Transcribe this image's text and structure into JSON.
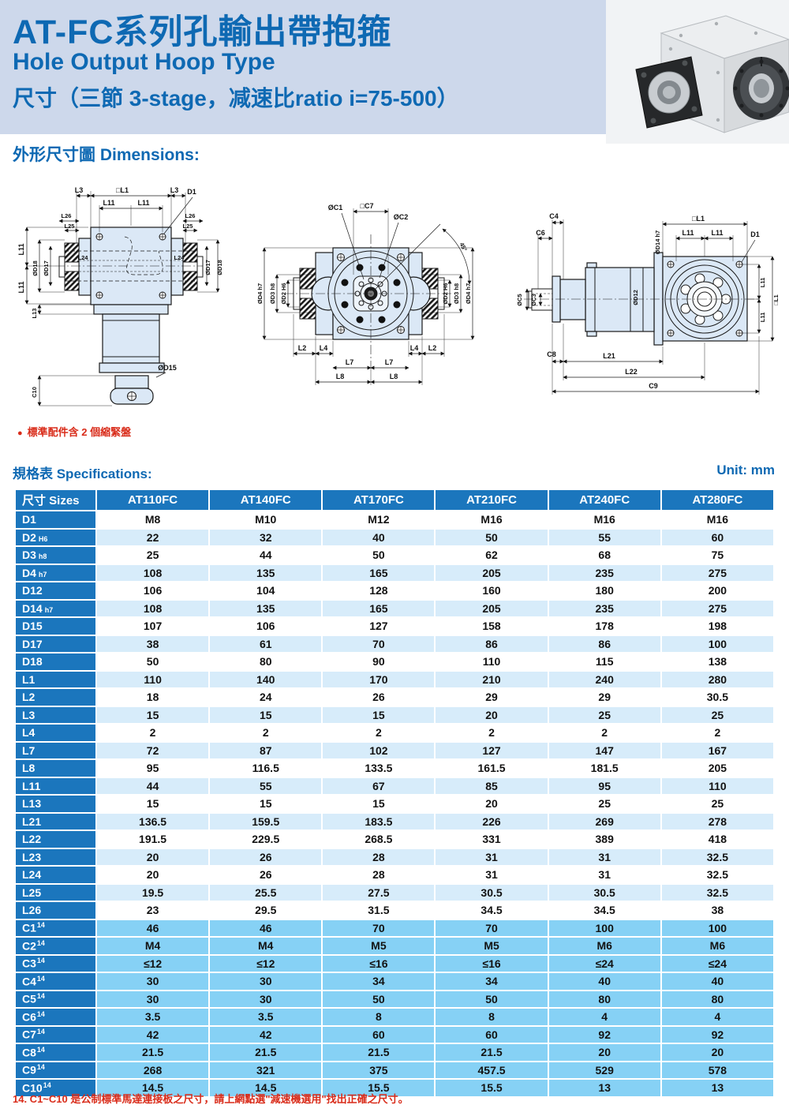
{
  "header": {
    "title_zh": "AT-FC系列孔輸出帶抱箍",
    "title_en": "Hole Output Hoop Type",
    "subtitle": "尺寸（三節 3-stage，减速比ratio i=75-500）"
  },
  "sections": {
    "dimensions_heading": "外形尺寸圖 Dimensions:",
    "spec_heading": "規格表 Specifications:",
    "unit": "Unit: mm"
  },
  "notes": {
    "accessory_bullet": "●",
    "accessory": "標準配件含 2 個縮緊盤",
    "footnote": "14. C1~C10 是公制標準馬達連接板之尺寸，請上網點選\"減速機選用\"找出正確之尺寸。"
  },
  "colors": {
    "header_band": "#cdd8eb",
    "accent_blue": "#0e69b3",
    "table_header": "#1b76bd",
    "row_light": "#d7ecfa",
    "row_c": "#86d1f5",
    "note_red": "#d92c1a",
    "drawing_fill": "#dbe8f6"
  },
  "dims": {
    "front": [
      "L3",
      "□L1",
      "L3",
      "D1",
      "L11",
      "L11",
      "L26",
      "L25",
      "L26",
      "L25",
      "L24",
      "L24",
      "L11",
      "L11",
      "ØD18",
      "ØD17",
      "L13",
      "C10",
      "ØD17",
      "ØD18",
      "ØD15"
    ],
    "side": [
      "ØC1",
      "□C7",
      "ØC2",
      "45°",
      "ØD4 h7",
      "ØD3 h8",
      "ØD2 H6",
      "ØD2 H6",
      "ØD3 h8",
      "ØD4 h7",
      "L2",
      "L4",
      "L4",
      "L2",
      "L7",
      "L7",
      "L8",
      "L8"
    ],
    "rear": [
      "C4",
      "C6",
      "ØC5",
      "ØC3",
      "ØD14 h7",
      "□L1",
      "L11",
      "L11",
      "D1",
      "ØD12",
      "L11",
      "L11",
      "□L1",
      "C8",
      "L21",
      "L22",
      "C9"
    ]
  },
  "table": {
    "size_header": "尺寸 Sizes",
    "columns": [
      "AT110FC",
      "AT140FC",
      "AT170FC",
      "AT210FC",
      "AT240FC",
      "AT280FC"
    ],
    "rows": [
      {
        "label": "D1",
        "values": [
          "M8",
          "M10",
          "M12",
          "M16",
          "M16",
          "M16"
        ]
      },
      {
        "label": "D2",
        "sub": "H6",
        "values": [
          "22",
          "32",
          "40",
          "50",
          "55",
          "60"
        ]
      },
      {
        "label": "D3",
        "sub": "h8",
        "values": [
          "25",
          "44",
          "50",
          "62",
          "68",
          "75"
        ]
      },
      {
        "label": "D4",
        "sub": "h7",
        "values": [
          "108",
          "135",
          "165",
          "205",
          "235",
          "275"
        ]
      },
      {
        "label": "D12",
        "values": [
          "106",
          "104",
          "128",
          "160",
          "180",
          "200"
        ]
      },
      {
        "label": "D14",
        "sub": "h7",
        "values": [
          "108",
          "135",
          "165",
          "205",
          "235",
          "275"
        ]
      },
      {
        "label": "D15",
        "values": [
          "107",
          "106",
          "127",
          "158",
          "178",
          "198"
        ]
      },
      {
        "label": "D17",
        "values": [
          "38",
          "61",
          "70",
          "86",
          "86",
          "100"
        ]
      },
      {
        "label": "D18",
        "values": [
          "50",
          "80",
          "90",
          "110",
          "115",
          "138"
        ]
      },
      {
        "label": "L1",
        "values": [
          "110",
          "140",
          "170",
          "210",
          "240",
          "280"
        ]
      },
      {
        "label": "L2",
        "values": [
          "18",
          "24",
          "26",
          "29",
          "29",
          "30.5"
        ]
      },
      {
        "label": "L3",
        "values": [
          "15",
          "15",
          "15",
          "20",
          "25",
          "25"
        ]
      },
      {
        "label": "L4",
        "values": [
          "2",
          "2",
          "2",
          "2",
          "2",
          "2"
        ]
      },
      {
        "label": "L7",
        "values": [
          "72",
          "87",
          "102",
          "127",
          "147",
          "167"
        ]
      },
      {
        "label": "L8",
        "values": [
          "95",
          "116.5",
          "133.5",
          "161.5",
          "181.5",
          "205"
        ]
      },
      {
        "label": "L11",
        "values": [
          "44",
          "55",
          "67",
          "85",
          "95",
          "110"
        ]
      },
      {
        "label": "L13",
        "values": [
          "15",
          "15",
          "15",
          "20",
          "25",
          "25"
        ]
      },
      {
        "label": "L21",
        "values": [
          "136.5",
          "159.5",
          "183.5",
          "226",
          "269",
          "278"
        ]
      },
      {
        "label": "L22",
        "values": [
          "191.5",
          "229.5",
          "268.5",
          "331",
          "389",
          "418"
        ]
      },
      {
        "label": "L23",
        "values": [
          "20",
          "26",
          "28",
          "31",
          "31",
          "32.5"
        ]
      },
      {
        "label": "L24",
        "values": [
          "20",
          "26",
          "28",
          "31",
          "31",
          "32.5"
        ]
      },
      {
        "label": "L25",
        "values": [
          "19.5",
          "25.5",
          "27.5",
          "30.5",
          "30.5",
          "32.5"
        ]
      },
      {
        "label": "L26",
        "values": [
          "23",
          "29.5",
          "31.5",
          "34.5",
          "34.5",
          "38"
        ]
      },
      {
        "label": "C1",
        "sup": "14",
        "values": [
          "46",
          "46",
          "70",
          "70",
          "100",
          "100"
        ]
      },
      {
        "label": "C2",
        "sup": "14",
        "values": [
          "M4",
          "M4",
          "M5",
          "M5",
          "M6",
          "M6"
        ]
      },
      {
        "label": "C3",
        "sup": "14",
        "values": [
          "≤12",
          "≤12",
          "≤16",
          "≤16",
          "≤24",
          "≤24"
        ]
      },
      {
        "label": "C4",
        "sup": "14",
        "values": [
          "30",
          "30",
          "34",
          "34",
          "40",
          "40"
        ]
      },
      {
        "label": "C5",
        "sup": "14",
        "values": [
          "30",
          "30",
          "50",
          "50",
          "80",
          "80"
        ]
      },
      {
        "label": "C6",
        "sup": "14",
        "values": [
          "3.5",
          "3.5",
          "8",
          "8",
          "4",
          "4"
        ]
      },
      {
        "label": "C7",
        "sup": "14",
        "values": [
          "42",
          "42",
          "60",
          "60",
          "92",
          "92"
        ]
      },
      {
        "label": "C8",
        "sup": "14",
        "values": [
          "21.5",
          "21.5",
          "21.5",
          "21.5",
          "20",
          "20"
        ]
      },
      {
        "label": "C9",
        "sup": "14",
        "values": [
          "268",
          "321",
          "375",
          "457.5",
          "529",
          "578"
        ]
      },
      {
        "label": "C10",
        "sup": "14",
        "values": [
          "14.5",
          "14.5",
          "15.5",
          "15.5",
          "13",
          "13"
        ]
      }
    ]
  }
}
